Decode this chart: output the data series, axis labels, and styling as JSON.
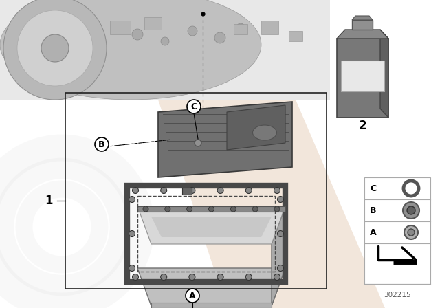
{
  "bg_color": "#ffffff",
  "part_number": "302215",
  "label_1": "1",
  "label_2": "2",
  "label_A": "A",
  "label_B": "B",
  "label_C": "C",
  "watermark_peach": "#dbb99a",
  "watermark_ring": "#c0c0c0",
  "box_color": "#222222",
  "strainer_dark": "#6a6a6a",
  "strainer_mid": "#808080",
  "pan_light": "#c8c8c8",
  "pan_rim": "#505050",
  "gasket_color": "#484848",
  "filter_body": "#707070",
  "filter_cap": "#888888",
  "legend_border": "#aaaaaa"
}
